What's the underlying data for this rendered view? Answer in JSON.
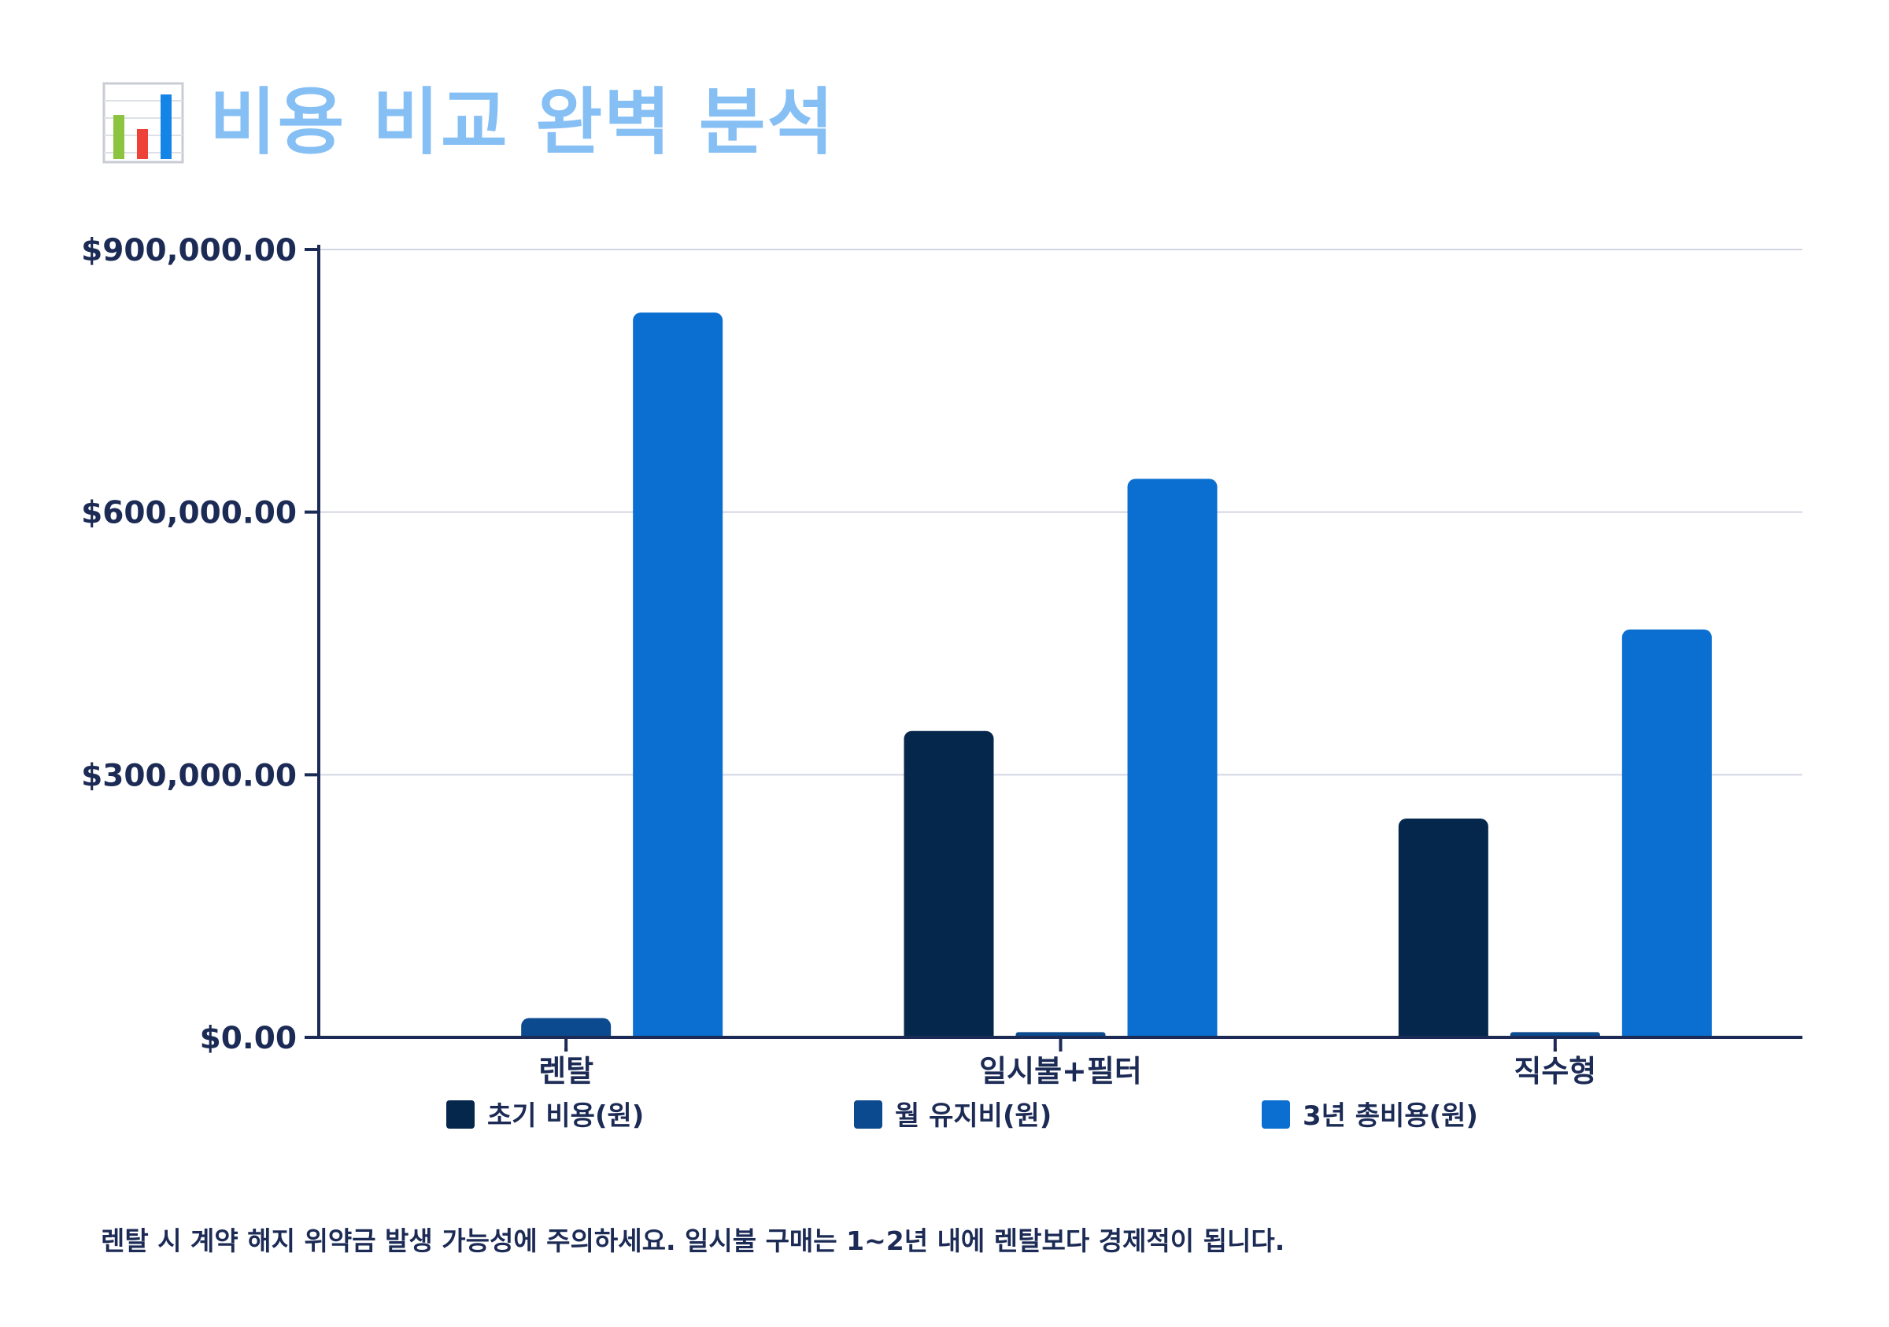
{
  "header": {
    "icon": "bar-chart-icon",
    "title": "비용 비교 완벽 분석"
  },
  "colors": {
    "title": "#86bff4",
    "axis": "#1c2b55",
    "grid": "#d3d6e2",
    "series": [
      "#05274b",
      "#0b4a8e",
      "#0a6fd0"
    ]
  },
  "chart_data": {
    "type": "bar",
    "title": "",
    "xlabel": "",
    "ylabel": "",
    "categories": [
      "렌탈",
      "일시불+필터",
      "직수형"
    ],
    "series": [
      {
        "name": "초기 비용(원)",
        "values": [
          0,
          350000,
          250000
        ]
      },
      {
        "name": "월 유지비(원)",
        "values": [
          22000,
          6000,
          6000
        ]
      },
      {
        "name": "3년 총비용(원)",
        "values": [
          828000,
          638000,
          466000
        ]
      }
    ],
    "ylim": [
      0,
      900000
    ],
    "yticks": [
      0,
      300000,
      600000,
      900000
    ],
    "ytick_labels": [
      "$0.00",
      "$300,000.00",
      "$600,000.00",
      "$900,000.00"
    ],
    "grid": true,
    "legend": "bottom"
  },
  "footer": {
    "note": "렌탈 시 계약 해지 위약금 발생 가능성에 주의하세요. 일시불 구매는 1~2년 내에 렌탈보다 경제적이 됩니다."
  }
}
